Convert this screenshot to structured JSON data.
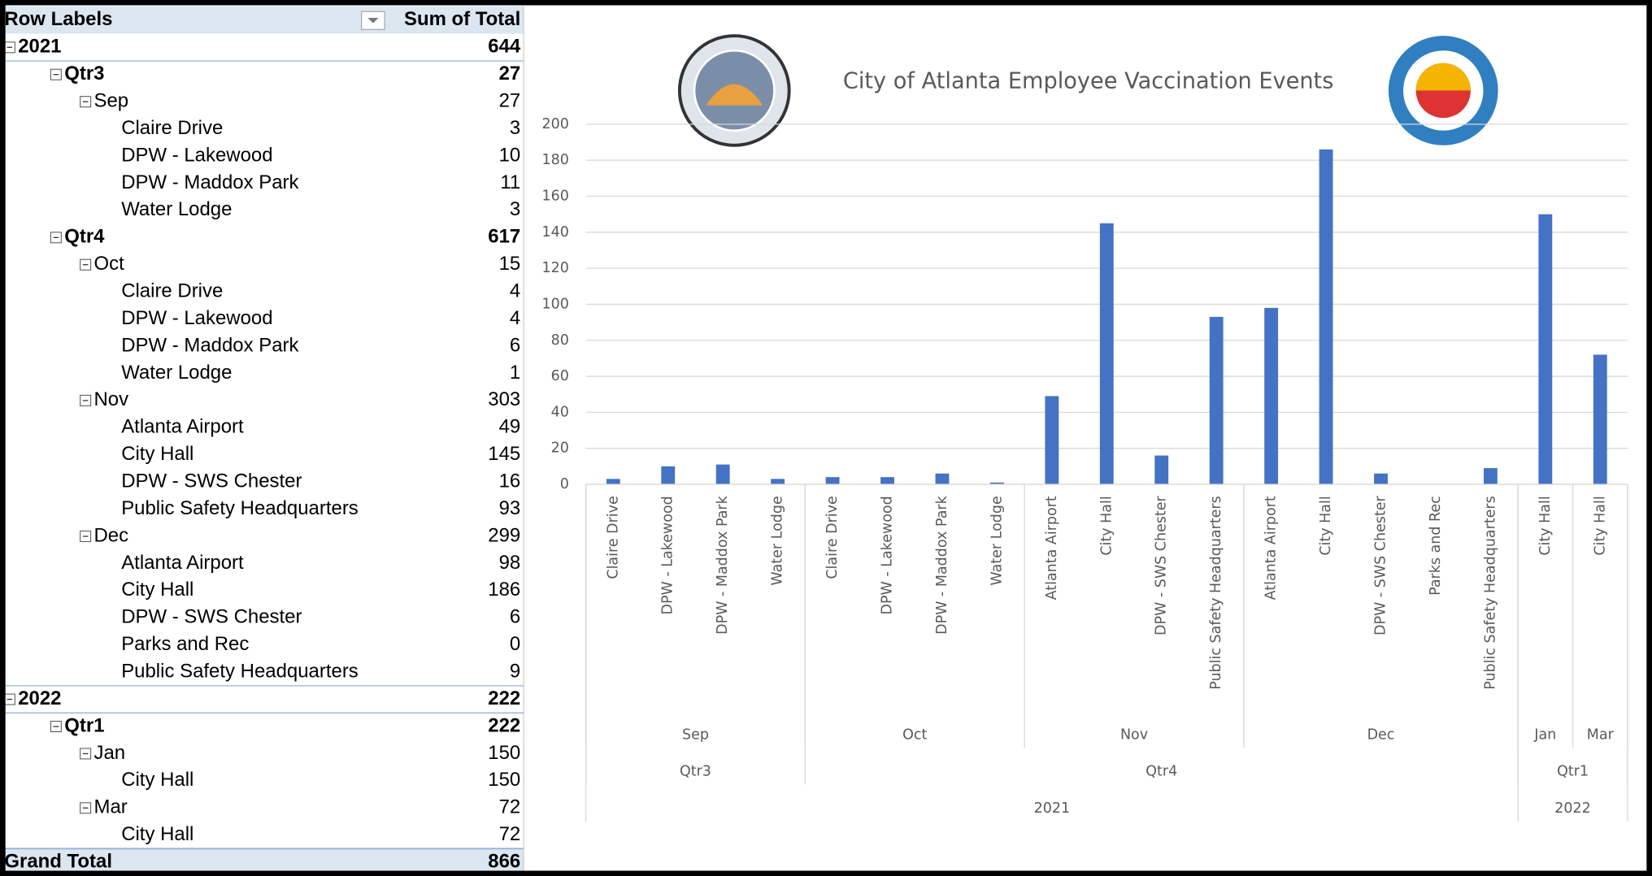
{
  "table": {
    "header": [
      "Row Labels",
      "Sum of Total"
    ],
    "years": [
      {
        "label": "2021",
        "total": 644,
        "quarters": [
          {
            "label": "Qtr3",
            "total": 27,
            "months": [
              {
                "label": "Sep",
                "total": 27,
                "items": [
                  {
                    "name": "Claire Drive",
                    "value": 3
                  },
                  {
                    "name": "DPW - Lakewood",
                    "value": 10
                  },
                  {
                    "name": "DPW - Maddox Park",
                    "value": 11
                  },
                  {
                    "name": "Water Lodge",
                    "value": 3
                  }
                ]
              }
            ]
          },
          {
            "label": "Qtr4",
            "total": 617,
            "months": [
              {
                "label": "Oct",
                "total": 15,
                "items": [
                  {
                    "name": "Claire Drive",
                    "value": 4
                  },
                  {
                    "name": "DPW - Lakewood",
                    "value": 4
                  },
                  {
                    "name": "DPW - Maddox Park",
                    "value": 6
                  },
                  {
                    "name": "Water Lodge",
                    "value": 1
                  }
                ]
              },
              {
                "label": "Nov",
                "total": 303,
                "items": [
                  {
                    "name": "Atlanta Airport",
                    "value": 49
                  },
                  {
                    "name": "City Hall",
                    "value": 145
                  },
                  {
                    "name": "DPW - SWS Chester",
                    "value": 16
                  },
                  {
                    "name": "Public Safety Headquarters",
                    "value": 93
                  }
                ]
              },
              {
                "label": "Dec",
                "total": 299,
                "items": [
                  {
                    "name": "Atlanta Airport",
                    "value": 98
                  },
                  {
                    "name": "City Hall",
                    "value": 186
                  },
                  {
                    "name": "DPW - SWS Chester",
                    "value": 6
                  },
                  {
                    "name": "Parks and Rec",
                    "value": 0
                  },
                  {
                    "name": "Public Safety Headquarters",
                    "value": 9
                  }
                ]
              }
            ]
          }
        ]
      },
      {
        "label": "2022",
        "total": 222,
        "quarters": [
          {
            "label": "Qtr1",
            "total": 222,
            "months": [
              {
                "label": "Jan",
                "total": 150,
                "items": [
                  {
                    "name": "City Hall",
                    "value": 150
                  }
                ]
              },
              {
                "label": "Mar",
                "total": 72,
                "items": [
                  {
                    "name": "City Hall",
                    "value": 72
                  }
                ]
              }
            ]
          }
        ]
      }
    ],
    "grand_total": {
      "label": "Grand Total",
      "value": 866
    }
  },
  "chart_data": {
    "type": "bar",
    "title": "City of Atlanta Employee Vaccination Events",
    "color": "#4472c4",
    "grid": true,
    "ylim": [
      0,
      200
    ],
    "yticks": [
      0,
      20,
      40,
      60,
      80,
      100,
      120,
      140,
      160,
      180,
      200
    ],
    "years": [
      {
        "label": "2021",
        "quarters": [
          {
            "label": "Qtr3",
            "months": [
              {
                "label": "Sep",
                "categories": [
                  "Claire Drive",
                  "DPW - Lakewood",
                  "DPW - Maddox Park",
                  "Water Lodge"
                ],
                "values": [
                  3,
                  10,
                  11,
                  3
                ]
              }
            ]
          },
          {
            "label": "Qtr4",
            "months": [
              {
                "label": "Oct",
                "categories": [
                  "Claire Drive",
                  "DPW - Lakewood",
                  "DPW - Maddox Park",
                  "Water Lodge"
                ],
                "values": [
                  4,
                  4,
                  6,
                  1
                ]
              },
              {
                "label": "Nov",
                "categories": [
                  "Atlanta Airport",
                  "City Hall",
                  "DPW - SWS Chester",
                  "Public Safety Headquarters"
                ],
                "values": [
                  49,
                  145,
                  16,
                  93
                ]
              },
              {
                "label": "Dec",
                "categories": [
                  "Atlanta Airport",
                  "City Hall",
                  "DPW - SWS Chester",
                  "Parks and Rec",
                  "Public Safety Headquarters"
                ],
                "values": [
                  98,
                  186,
                  6,
                  0,
                  9
                ]
              }
            ]
          }
        ]
      },
      {
        "label": "2022",
        "quarters": [
          {
            "label": "Qtr1",
            "months": [
              {
                "label": "Jan",
                "categories": [
                  "City Hall"
                ],
                "values": [
                  150
                ]
              },
              {
                "label": "Mar",
                "categories": [
                  "City Hall"
                ],
                "values": [
                  72
                ]
              }
            ]
          }
        ]
      }
    ]
  }
}
